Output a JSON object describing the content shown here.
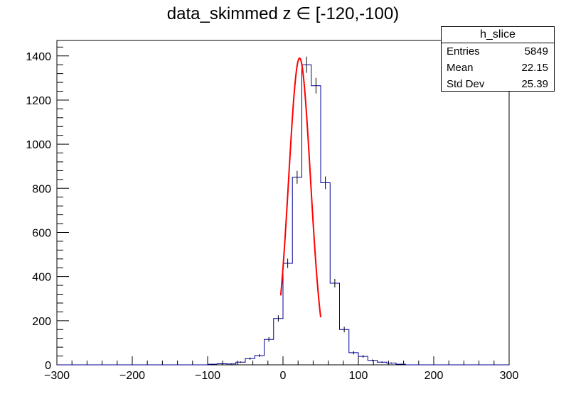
{
  "chart_data": {
    "type": "histogram",
    "title": "data_skimmed z  ∈ [-120,-100)",
    "xlim": [
      -300,
      300
    ],
    "ylim": [
      0,
      1470
    ],
    "x_ticks": [
      -300,
      -200,
      -100,
      0,
      100,
      200,
      300
    ],
    "y_ticks": [
      0,
      200,
      400,
      600,
      800,
      1000,
      1200,
      1400
    ],
    "grid": false,
    "bin_edges_start": -300,
    "bin_width": 12.5,
    "bins": [
      {
        "x": -100,
        "value": 3
      },
      {
        "x": -87.5,
        "value": 5
      },
      {
        "x": -75,
        "value": 4
      },
      {
        "x": -62.5,
        "value": 12
      },
      {
        "x": -50,
        "value": 28
      },
      {
        "x": -37.5,
        "value": 42
      },
      {
        "x": -25,
        "value": 115
      },
      {
        "x": -12.5,
        "value": 210
      },
      {
        "x": 0,
        "value": 460
      },
      {
        "x": 12.5,
        "value": 850
      },
      {
        "x": 25,
        "value": 1360
      },
      {
        "x": 37.5,
        "value": 1265
      },
      {
        "x": 50,
        "value": 825
      },
      {
        "x": 62.5,
        "value": 370
      },
      {
        "x": 75,
        "value": 160
      },
      {
        "x": 87.5,
        "value": 55
      },
      {
        "x": 100,
        "value": 38
      },
      {
        "x": 112.5,
        "value": 20
      },
      {
        "x": 125,
        "value": 12
      },
      {
        "x": 137.5,
        "value": 8
      },
      {
        "x": 150,
        "value": 3
      }
    ],
    "fit": {
      "type": "gaussian",
      "color": "#ff0000",
      "amplitude": 1390,
      "mean": 22,
      "sigma": 14.5,
      "range": [
        -3,
        50
      ]
    },
    "histogram_color": "#000099",
    "stats": {
      "name": "h_slice",
      "rows": [
        {
          "label": "Entries",
          "value": "5849"
        },
        {
          "label": "Mean",
          "value": "22.15"
        },
        {
          "label": "Std Dev",
          "value": "25.39"
        }
      ]
    }
  }
}
